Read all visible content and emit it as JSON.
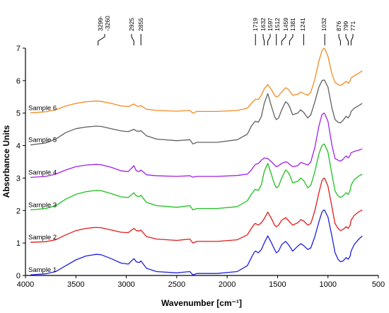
{
  "chart_data": {
    "type": "line",
    "xlabel": "Wavenumber [cm⁻¹]",
    "ylabel": "Absorbance Units",
    "xlim": [
      4000,
      500
    ],
    "ylim": [
      0,
      7
    ],
    "x_reversed": true,
    "xticks": [
      "4000",
      "3500",
      "3000",
      "2500",
      "2000",
      "1500",
      "1000",
      "500"
    ],
    "yticks": [
      "0",
      "1",
      "2",
      "3",
      "4",
      "5",
      "6",
      "7"
    ],
    "grid": false,
    "peak_annotations": [
      {
        "label": "3299-\n-3260",
        "x": 3280
      },
      {
        "label": "2925",
        "x": 2925
      },
      {
        "label": "2855",
        "x": 2855
      },
      {
        "label": "1719",
        "x": 1719
      },
      {
        "label": "1632",
        "x": 1632
      },
      {
        "label": "1597",
        "x": 1597
      },
      {
        "label": "1512",
        "x": 1512
      },
      {
        "label": "1459",
        "x": 1459
      },
      {
        "label": "1381",
        "x": 1381
      },
      {
        "label": "1241",
        "x": 1241
      },
      {
        "label": "1032",
        "x": 1032
      },
      {
        "label": "876",
        "x": 876
      },
      {
        "label": "799",
        "x": 799
      },
      {
        "label": "771",
        "x": 771
      }
    ],
    "series": [
      {
        "name": "Sample 1",
        "color": "#1f1fdc",
        "x": [
          3950,
          3800,
          3700,
          3600,
          3500,
          3400,
          3300,
          3250,
          3150,
          3050,
          2980,
          2925,
          2900,
          2870,
          2855,
          2800,
          2700,
          2500,
          2370,
          2340,
          2300,
          2100,
          1900,
          1800,
          1760,
          1730,
          1719,
          1690,
          1660,
          1632,
          1597,
          1560,
          1530,
          1512,
          1490,
          1459,
          1420,
          1400,
          1381,
          1350,
          1300,
          1270,
          1241,
          1200,
          1170,
          1130,
          1090,
          1060,
          1040,
          1032,
          1000,
          960,
          930,
          900,
          876,
          850,
          820,
          799,
          780,
          771,
          740,
          700,
          660
        ],
        "y": [
          0.02,
          0.05,
          0.12,
          0.3,
          0.48,
          0.6,
          0.65,
          0.64,
          0.52,
          0.38,
          0.35,
          0.52,
          0.42,
          0.4,
          0.45,
          0.22,
          0.12,
          0.08,
          0.12,
          0.02,
          0.06,
          0.06,
          0.12,
          0.3,
          0.55,
          0.72,
          0.75,
          0.7,
          0.8,
          1.0,
          1.22,
          1.0,
          0.8,
          0.7,
          0.75,
          0.95,
          1.05,
          0.98,
          0.9,
          0.75,
          0.9,
          0.98,
          0.92,
          0.8,
          0.85,
          1.2,
          1.65,
          1.95,
          2.02,
          2.0,
          1.8,
          1.2,
          0.7,
          0.5,
          0.42,
          0.45,
          0.55,
          0.5,
          0.6,
          0.75,
          0.95,
          1.1,
          1.22
        ]
      },
      {
        "name": "Sample 2",
        "color": "#e01b1b",
        "x": [
          3950,
          3800,
          3700,
          3600,
          3500,
          3400,
          3300,
          3250,
          3150,
          3050,
          2980,
          2925,
          2900,
          2870,
          2855,
          2800,
          2700,
          2500,
          2370,
          2340,
          2300,
          2100,
          1900,
          1800,
          1760,
          1730,
          1719,
          1690,
          1660,
          1632,
          1597,
          1560,
          1530,
          1512,
          1490,
          1459,
          1420,
          1400,
          1381,
          1350,
          1300,
          1270,
          1241,
          1200,
          1170,
          1130,
          1090,
          1060,
          1040,
          1032,
          1000,
          960,
          930,
          900,
          876,
          850,
          820,
          799,
          780,
          771,
          740,
          700,
          660
        ],
        "y": [
          1.02,
          1.04,
          1.1,
          1.25,
          1.38,
          1.45,
          1.48,
          1.47,
          1.4,
          1.33,
          1.32,
          1.45,
          1.38,
          1.37,
          1.4,
          1.2,
          1.12,
          1.08,
          1.12,
          1.0,
          1.05,
          1.05,
          1.1,
          1.25,
          1.45,
          1.58,
          1.6,
          1.55,
          1.62,
          1.75,
          1.95,
          1.75,
          1.55,
          1.5,
          1.55,
          1.7,
          1.78,
          1.72,
          1.65,
          1.55,
          1.62,
          1.72,
          1.68,
          1.55,
          1.6,
          2.0,
          2.55,
          2.92,
          3.0,
          2.98,
          2.75,
          2.1,
          1.6,
          1.45,
          1.38,
          1.42,
          1.5,
          1.45,
          1.55,
          1.7,
          1.85,
          1.95,
          2.02
        ]
      },
      {
        "name": "Sample 3",
        "color": "#1fc01f",
        "x": [
          3950,
          3800,
          3700,
          3600,
          3500,
          3400,
          3300,
          3250,
          3150,
          3050,
          2980,
          2925,
          2900,
          2870,
          2855,
          2800,
          2700,
          2500,
          2370,
          2340,
          2300,
          2100,
          1900,
          1800,
          1760,
          1730,
          1719,
          1690,
          1660,
          1632,
          1597,
          1560,
          1530,
          1512,
          1490,
          1459,
          1420,
          1400,
          1381,
          1350,
          1300,
          1270,
          1241,
          1200,
          1170,
          1130,
          1090,
          1060,
          1040,
          1032,
          1000,
          960,
          930,
          900,
          876,
          850,
          820,
          799,
          780,
          771,
          740,
          700,
          660
        ],
        "y": [
          2.02,
          2.06,
          2.15,
          2.35,
          2.5,
          2.58,
          2.62,
          2.61,
          2.52,
          2.42,
          2.4,
          2.55,
          2.45,
          2.43,
          2.47,
          2.25,
          2.15,
          2.1,
          2.15,
          2.02,
          2.06,
          2.06,
          2.12,
          2.3,
          2.5,
          2.62,
          2.65,
          2.62,
          2.8,
          3.2,
          3.45,
          3.1,
          2.8,
          2.7,
          2.75,
          3.0,
          3.25,
          3.2,
          3.1,
          2.85,
          2.9,
          3.0,
          2.92,
          2.7,
          2.78,
          3.2,
          3.75,
          4.0,
          4.05,
          4.02,
          3.8,
          3.1,
          2.6,
          2.45,
          2.4,
          2.45,
          2.55,
          2.5,
          2.62,
          2.78,
          2.95,
          3.05,
          3.12
        ]
      },
      {
        "name": "Sample 4",
        "color": "#a020e8",
        "x": [
          3950,
          3800,
          3700,
          3600,
          3500,
          3400,
          3300,
          3250,
          3150,
          3050,
          2980,
          2925,
          2900,
          2870,
          2855,
          2800,
          2700,
          2500,
          2370,
          2340,
          2300,
          2100,
          1900,
          1800,
          1760,
          1730,
          1719,
          1690,
          1660,
          1632,
          1597,
          1560,
          1530,
          1512,
          1490,
          1459,
          1420,
          1400,
          1381,
          1350,
          1300,
          1270,
          1241,
          1200,
          1170,
          1130,
          1090,
          1060,
          1040,
          1032,
          1000,
          960,
          930,
          900,
          876,
          850,
          820,
          799,
          780,
          771,
          740,
          700,
          660
        ],
        "y": [
          3.02,
          3.05,
          3.12,
          3.25,
          3.35,
          3.4,
          3.42,
          3.41,
          3.33,
          3.22,
          3.2,
          3.38,
          3.22,
          3.2,
          3.25,
          3.1,
          3.07,
          3.05,
          3.07,
          3.03,
          3.05,
          3.05,
          3.08,
          3.12,
          3.25,
          3.38,
          3.42,
          3.45,
          3.55,
          3.62,
          3.6,
          3.5,
          3.4,
          3.35,
          3.38,
          3.45,
          3.5,
          3.48,
          3.42,
          3.35,
          3.38,
          3.48,
          3.45,
          3.4,
          3.5,
          3.95,
          4.6,
          4.95,
          5.0,
          4.98,
          4.75,
          4.0,
          3.6,
          3.55,
          3.52,
          3.58,
          3.68,
          3.62,
          3.7,
          3.78,
          3.82,
          3.85,
          3.9
        ]
      },
      {
        "name": "Sample 5",
        "color": "#606060",
        "x": [
          3950,
          3800,
          3700,
          3600,
          3500,
          3400,
          3300,
          3250,
          3150,
          3050,
          2980,
          2925,
          2900,
          2870,
          2855,
          2800,
          2700,
          2500,
          2370,
          2340,
          2300,
          2100,
          1900,
          1800,
          1760,
          1730,
          1719,
          1690,
          1660,
          1632,
          1597,
          1560,
          1530,
          1512,
          1490,
          1459,
          1420,
          1400,
          1381,
          1350,
          1300,
          1270,
          1241,
          1200,
          1170,
          1130,
          1090,
          1060,
          1040,
          1032,
          1000,
          960,
          930,
          900,
          876,
          850,
          820,
          799,
          780,
          771,
          740,
          700,
          660
        ],
        "y": [
          4.02,
          4.08,
          4.2,
          4.4,
          4.52,
          4.57,
          4.6,
          4.59,
          4.52,
          4.45,
          4.43,
          4.5,
          4.45,
          4.44,
          4.46,
          4.3,
          4.2,
          4.15,
          4.18,
          4.05,
          4.1,
          4.1,
          4.18,
          4.35,
          4.6,
          4.72,
          4.75,
          4.72,
          4.9,
          5.3,
          5.6,
          5.2,
          4.9,
          4.8,
          4.85,
          5.1,
          5.35,
          5.3,
          5.2,
          4.95,
          5.0,
          5.1,
          5.02,
          4.85,
          4.95,
          5.35,
          5.8,
          6.0,
          6.02,
          6.0,
          5.8,
          5.15,
          4.8,
          4.72,
          4.7,
          4.78,
          4.9,
          4.85,
          4.95,
          5.05,
          5.15,
          5.22,
          5.3
        ]
      },
      {
        "name": "Sample 6",
        "color": "#f58a1f",
        "x": [
          3950,
          3800,
          3700,
          3600,
          3500,
          3400,
          3300,
          3250,
          3150,
          3050,
          2980,
          2925,
          2900,
          2870,
          2855,
          2800,
          2700,
          2500,
          2370,
          2340,
          2300,
          2100,
          1900,
          1800,
          1760,
          1730,
          1719,
          1690,
          1660,
          1632,
          1597,
          1560,
          1530,
          1512,
          1490,
          1459,
          1420,
          1400,
          1381,
          1350,
          1300,
          1270,
          1241,
          1200,
          1170,
          1130,
          1090,
          1060,
          1040,
          1032,
          1000,
          960,
          930,
          900,
          876,
          850,
          820,
          799,
          780,
          771,
          740,
          700,
          660
        ],
        "y": [
          5.01,
          5.04,
          5.1,
          5.22,
          5.3,
          5.35,
          5.37,
          5.36,
          5.3,
          5.22,
          5.2,
          5.28,
          5.22,
          5.21,
          5.23,
          5.12,
          5.08,
          5.06,
          5.08,
          5.0,
          5.05,
          5.05,
          5.08,
          5.15,
          5.3,
          5.4,
          5.43,
          5.42,
          5.55,
          5.75,
          5.88,
          5.72,
          5.55,
          5.5,
          5.53,
          5.65,
          5.78,
          5.75,
          5.68,
          5.55,
          5.58,
          5.65,
          5.6,
          5.55,
          5.65,
          6.05,
          6.6,
          6.92,
          7.0,
          6.98,
          6.75,
          6.2,
          5.95,
          5.88,
          5.85,
          5.9,
          5.98,
          5.92,
          6.0,
          6.08,
          6.15,
          6.22,
          6.3
        ]
      }
    ]
  }
}
